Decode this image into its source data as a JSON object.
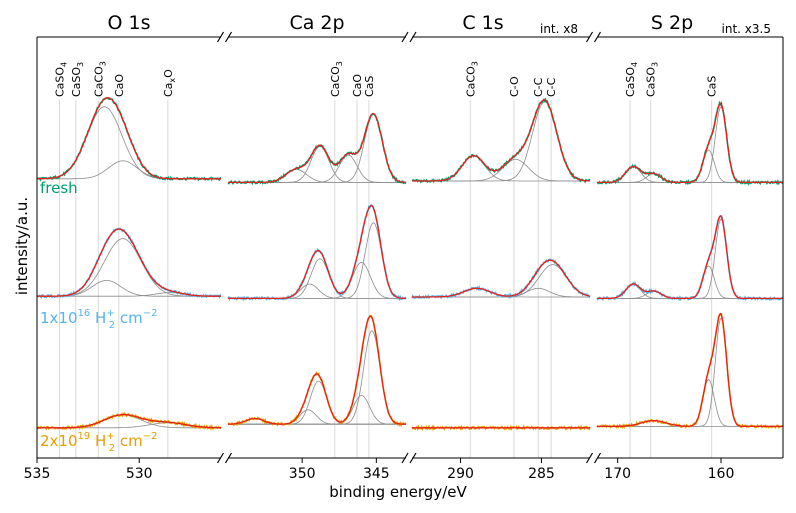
{
  "chart_data": {
    "type": "line",
    "xlabel": "binding energy/eV",
    "ylabel": "intensity/a.u.",
    "x_direction": "decreasing",
    "colors": {
      "fresh": "#009e73",
      "h1": "#56b4e9",
      "h2": "#e69f00",
      "fit": "#e8201a",
      "component": "#8c8c8c",
      "reference_line": "#d9d9d9"
    },
    "samples": [
      {
        "key": "fresh",
        "label": "fresh",
        "color": "#009e73"
      },
      {
        "key": "h1",
        "label_main": "1x10",
        "label_exp": "16",
        "label_species": "H",
        "label_species_sup": "+",
        "label_species_sub": "2",
        "label_unit": "cm",
        "label_unit_exp": "−2",
        "color": "#56b4e9"
      },
      {
        "key": "h2",
        "label_main": "2x10",
        "label_exp": "19",
        "label_species": "H",
        "label_species_sup": "+",
        "label_species_sub": "2",
        "label_unit": "cm",
        "label_unit_exp": "−2",
        "color": "#e69f00"
      }
    ],
    "panels": [
      {
        "title": "O 1s",
        "multiplier": "",
        "xlim": [
          535,
          526
        ],
        "ticks": [
          535,
          530
        ],
        "ticks_text": [
          "535",
          "530"
        ],
        "references": [
          {
            "energy": 533.9,
            "label": "CaSO4",
            "text": "CaSO",
            "sub": "4"
          },
          {
            "energy": 533.1,
            "label": "CaSO3",
            "text": "CaSO",
            "sub": "3"
          },
          {
            "energy": 532.0,
            "label": "CaCO3",
            "text": "CaCO",
            "sub": "3"
          },
          {
            "energy": 531.0,
            "label": "CaO",
            "text": "CaO",
            "sub": ""
          },
          {
            "energy": 528.6,
            "label": "CaxO",
            "text": "Ca",
            "sub": "x",
            "tail": "O"
          }
        ],
        "spectra": {
          "fresh": {
            "baseline": 0.1,
            "peaks": [
              [
                531.7,
                1.0,
                0.85
              ],
              [
                530.8,
                0.25,
                0.7
              ]
            ]
          },
          "h1": {
            "baseline": 0.08,
            "peaks": [
              [
                530.8,
                0.8,
                0.9
              ],
              [
                531.6,
                0.22,
                0.7
              ],
              [
                528.5,
                0.05,
                0.7
              ]
            ]
          },
          "h2": {
            "baseline": 0.03,
            "peaks": [
              [
                530.8,
                0.18,
                0.9
              ],
              [
                528.6,
                0.07,
                0.9
              ]
            ]
          }
        }
      },
      {
        "title": "Ca 2p",
        "multiplier": "",
        "xlim": [
          355,
          343
        ],
        "ticks": [
          350,
          345
        ],
        "ticks_text": [
          "350",
          "345"
        ],
        "references": [
          {
            "energy": 347.8,
            "label": "CaCO3",
            "text": "CaCO",
            "sub": "3"
          },
          {
            "energy": 346.3,
            "label": "CaO",
            "text": "CaO",
            "sub": ""
          },
          {
            "energy": 345.5,
            "label": "CaS",
            "text": "CaS",
            "sub": ""
          }
        ],
        "spectra": {
          "fresh": {
            "baseline": 0.05,
            "peaks": [
              [
                345.2,
                0.95,
                0.6
              ],
              [
                348.8,
                0.5,
                0.6
              ],
              [
                346.9,
                0.38,
                0.6
              ],
              [
                350.4,
                0.18,
                0.7
              ]
            ]
          },
          "h1": {
            "baseline": 0.05,
            "peaks": [
              [
                345.2,
                1.05,
                0.55
              ],
              [
                346.0,
                0.5,
                0.6
              ],
              [
                348.8,
                0.55,
                0.6
              ],
              [
                349.5,
                0.2,
                0.6
              ]
            ]
          },
          "h2": {
            "baseline": 0.08,
            "peaks": [
              [
                345.3,
                1.3,
                0.55
              ],
              [
                346.0,
                0.4,
                0.55
              ],
              [
                348.9,
                0.6,
                0.55
              ],
              [
                349.6,
                0.2,
                0.55
              ],
              [
                353.2,
                0.08,
                0.6
              ]
            ]
          }
        }
      },
      {
        "title": "C 1s",
        "multiplier": "int. x8",
        "xlim": [
          293,
          282
        ],
        "ticks": [
          290,
          285
        ],
        "ticks_text": [
          "290",
          "285"
        ],
        "references": [
          {
            "energy": 289.4,
            "label": "CaCO3",
            "text": "CaCO",
            "sub": "3"
          },
          {
            "energy": 286.7,
            "label": "C-O",
            "text": "C-O",
            "sub": ""
          },
          {
            "energy": 285.2,
            "label": "C-C",
            "text": "C-C",
            "sub": ""
          },
          {
            "energy": 284.4,
            "label": "C-C",
            "text": "C-C",
            "sub": ""
          }
        ],
        "spectra": {
          "fresh": {
            "baseline": 0.07,
            "peaks": [
              [
                284.8,
                1.1,
                0.75
              ],
              [
                286.6,
                0.3,
                0.8
              ],
              [
                289.2,
                0.35,
                0.7
              ]
            ]
          },
          "h1": {
            "baseline": 0.07,
            "peaks": [
              [
                284.3,
                0.45,
                0.85
              ],
              [
                285.2,
                0.12,
                0.7
              ],
              [
                289.0,
                0.12,
                0.8
              ]
            ]
          },
          "h2": {
            "baseline": 0.03,
            "peaks": []
          }
        }
      },
      {
        "title": "S 2p",
        "multiplier": "int. x3.5",
        "xlim": [
          172,
          154
        ],
        "ticks": [
          170,
          160
        ],
        "ticks_text": [
          "170",
          "160"
        ],
        "references": [
          {
            "energy": 168.8,
            "label": "CaSO4",
            "text": "CaSO",
            "sub": "4"
          },
          {
            "energy": 166.8,
            "label": "CaSO3",
            "text": "CaSO",
            "sub": "3"
          },
          {
            "energy": 160.9,
            "label": "CaS",
            "text": "CaS",
            "sub": ""
          }
        ],
        "spectra": {
          "fresh": {
            "baseline": 0.05,
            "peaks": [
              [
                160.0,
                1.05,
                0.55
              ],
              [
                161.2,
                0.45,
                0.55
              ],
              [
                168.5,
                0.22,
                0.75
              ],
              [
                166.5,
                0.12,
                0.7
              ]
            ]
          },
          "h1": {
            "baseline": 0.05,
            "peaks": [
              [
                160.0,
                1.1,
                0.55
              ],
              [
                161.2,
                0.45,
                0.55
              ],
              [
                168.5,
                0.2,
                0.7
              ],
              [
                166.5,
                0.1,
                0.7
              ]
            ]
          },
          "h2": {
            "baseline": 0.05,
            "peaks": [
              [
                160.0,
                1.5,
                0.55
              ],
              [
                161.2,
                0.65,
                0.55
              ],
              [
                166.5,
                0.08,
                1.2
              ]
            ]
          }
        }
      }
    ]
  }
}
